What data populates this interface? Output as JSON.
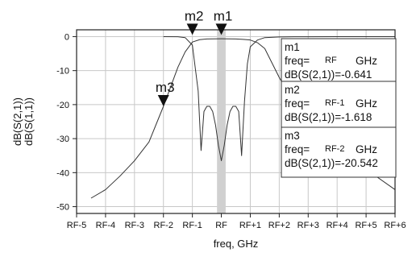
{
  "chart_data": {
    "type": "line",
    "xlabel": "freq, GHz",
    "ylabel_lines": [
      "dB(S(2,1))",
      "dB(S(1,1))"
    ],
    "x_tick_labels": [
      "RF-5",
      "RF-4",
      "RF-3",
      "RF-2",
      "RF-1",
      "RF",
      "RF+1",
      "RF+2",
      "RF+3",
      "RF+4",
      "RF+5",
      "RF+6"
    ],
    "x_range": [
      -5,
      6
    ],
    "y_ticks": [
      0,
      -10,
      -20,
      -30,
      -40,
      -50
    ],
    "ylim": [
      -52,
      2
    ],
    "highlight_band": [
      -0.15,
      0.15
    ],
    "series": [
      {
        "x": [
          -4.5,
          -4.0,
          -3.5,
          -3.0,
          -2.5,
          -2.0,
          -1.5,
          -1.25,
          -1.0,
          -0.75,
          -0.5,
          -0.25,
          0.0,
          0.25,
          0.5,
          0.75,
          1.0,
          1.25,
          1.5,
          2.0,
          2.5,
          3.0,
          4.0,
          5.0,
          6.0
        ],
        "values": [
          -47.5,
          -45,
          -41,
          -36.5,
          -31,
          -20.5,
          -9,
          -4.5,
          -1.6,
          -0.9,
          -0.7,
          -0.65,
          -0.64,
          -0.65,
          -0.7,
          -0.8,
          -1.0,
          -1.8,
          -3.5,
          -12,
          -19.5,
          -25,
          -33,
          -39,
          -45
        ]
      },
      {
        "x": [
          -2.0,
          -1.5,
          -1.25,
          -1.0,
          -0.8,
          -0.7,
          -0.6,
          -0.5,
          -0.4,
          -0.3,
          -0.2,
          -0.1,
          0.0,
          0.1,
          0.2,
          0.3,
          0.4,
          0.5,
          0.6,
          0.7,
          0.8,
          0.9,
          1.0,
          1.25,
          1.5,
          2.0,
          2.5,
          3.0,
          4.0,
          5.0,
          6.0
        ],
        "values": [
          -0.01,
          -0.05,
          -0.3,
          -2.5,
          -16,
          -33.5,
          -22,
          -20.5,
          -20.5,
          -22,
          -26,
          -32,
          -36.5,
          -32,
          -26,
          -22,
          -20.5,
          -20.5,
          -22,
          -35,
          -19,
          -8,
          -3,
          -1,
          -0.3,
          -0.1,
          -0.05,
          -0.03,
          -0.01,
          -0.01,
          -0.01
        ]
      }
    ],
    "markers": [
      {
        "name": "m1",
        "x": 0.0,
        "y": 0.5
      },
      {
        "name": "m2",
        "x": -1.0,
        "y": 0.5
      },
      {
        "name": "m3",
        "x": -2.0,
        "y": -20.5
      }
    ],
    "marker_boxes": [
      {
        "name": "m1",
        "freq_label": "freq=",
        "freq_value": "RF",
        "freq_unit": "GHz",
        "value_text": "dB(S(2,1))=-0.641"
      },
      {
        "name": "m2",
        "freq_label": "freq=",
        "freq_value": "RF-1",
        "freq_unit": "GHz",
        "value_text": "dB(S(2,1))=-1.618"
      },
      {
        "name": "m3",
        "freq_label": "freq=",
        "freq_value": "RF-2",
        "freq_unit": "GHz",
        "value_text": "dB(S(2,1))=-20.542"
      }
    ],
    "grid": true
  }
}
